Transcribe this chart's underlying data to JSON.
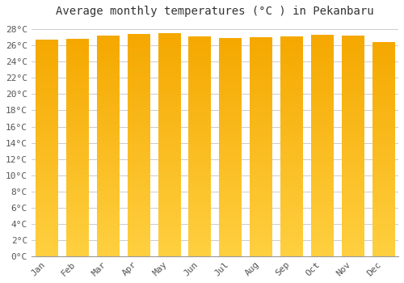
{
  "title": "Average monthly temperatures (°C ) in Pekanbaru",
  "months": [
    "Jan",
    "Feb",
    "Mar",
    "Apr",
    "May",
    "Jun",
    "Jul",
    "Aug",
    "Sep",
    "Oct",
    "Nov",
    "Dec"
  ],
  "values": [
    26.7,
    26.8,
    27.2,
    27.4,
    27.5,
    27.1,
    26.9,
    27.0,
    27.1,
    27.3,
    27.2,
    26.4
  ],
  "bar_color_bottom": "#FFD040",
  "bar_color_top": "#F5A800",
  "background_color": "#FFFFFF",
  "grid_color": "#CCCCCC",
  "ylim": [
    0,
    29
  ],
  "ytick_step": 2,
  "title_fontsize": 10,
  "tick_fontsize": 8,
  "font_family": "monospace",
  "bar_width": 0.72,
  "gap_color": "#FFFFFF"
}
